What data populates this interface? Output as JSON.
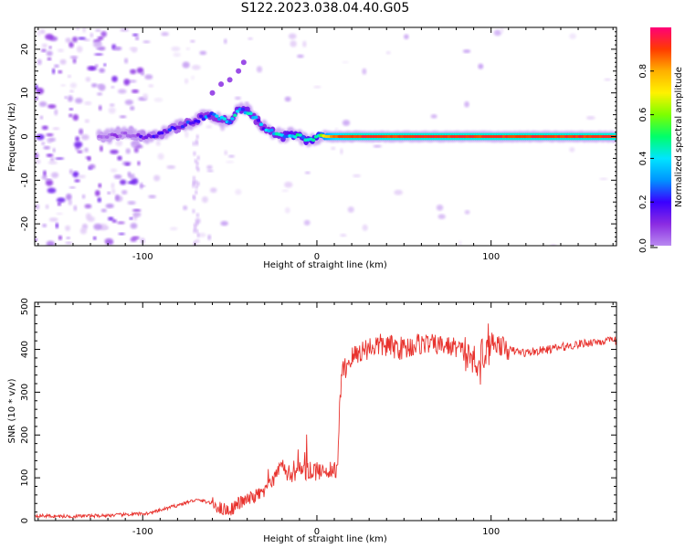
{
  "page": {
    "title": "S122.2023.038.04.40.G05"
  },
  "colors": {
    "snr_line": "#e8322d",
    "colormap": [
      "#ffffff",
      "#e2cbf7",
      "#b98af0",
      "#8a2be2",
      "#3a00ff",
      "#0094ff",
      "#00e5ff",
      "#00ff6a",
      "#7dff00",
      "#fff200",
      "#ffb000",
      "#ff3b00",
      "#ff0078"
    ]
  },
  "chart_data": [
    {
      "type": "heatmap",
      "title": "",
      "xlabel": "Height of straight line (km)",
      "ylabel": "Frequency (Hz)",
      "xlim": [
        -162,
        172
      ],
      "ylim": [
        -25,
        25
      ],
      "x_ticks": [
        -100,
        0,
        100
      ],
      "x_tick_labels": [
        "-100",
        "0",
        "100"
      ],
      "y_ticks": [
        -20,
        -10,
        0,
        10,
        20
      ],
      "y_tick_labels": [
        "-20",
        "-10",
        "0",
        "10",
        "20"
      ],
      "colorbar": {
        "label": "Normalized spectral amplitude",
        "range": [
          0,
          1
        ],
        "ticks": [
          0.0,
          0.2,
          0.4,
          0.6,
          0.8
        ],
        "tick_labels": [
          "0.0",
          "0.2",
          "0.4",
          "0.6",
          "0.8"
        ]
      },
      "ridge": {
        "x": [
          -120,
          -110,
          -100,
          -95,
          -90,
          -85,
          -80,
          -75,
          -70,
          -65,
          -60,
          -55,
          -50,
          -45,
          -42,
          -38,
          -35,
          -30,
          -25,
          -20,
          -15,
          -10,
          -5,
          0,
          5,
          10,
          20,
          40,
          60,
          80,
          100,
          120,
          140,
          160,
          170
        ],
        "freq": [
          0,
          0.5,
          0,
          0.3,
          0.5,
          1.5,
          2,
          3,
          3.5,
          4.5,
          5,
          4,
          3.5,
          6,
          6,
          5.5,
          4,
          2,
          1,
          0,
          0.5,
          0,
          -1,
          0,
          0,
          0,
          0,
          0,
          0,
          0,
          0,
          0,
          0,
          0,
          0
        ],
        "amplitude": [
          0.25,
          0.25,
          0.3,
          0.3,
          0.35,
          0.35,
          0.35,
          0.4,
          0.4,
          0.45,
          0.45,
          0.45,
          0.5,
          0.5,
          0.5,
          0.5,
          0.45,
          0.45,
          0.5,
          0.5,
          0.55,
          0.55,
          0.55,
          0.6,
          0.8,
          0.9,
          0.95,
          0.95,
          0.95,
          0.95,
          0.95,
          0.95,
          0.95,
          0.95,
          0.95
        ]
      },
      "secondary_ridge": {
        "x": [
          -60,
          -55,
          -50,
          -45,
          -42
        ],
        "freq": [
          10,
          12,
          13,
          15,
          17
        ]
      }
    },
    {
      "type": "line",
      "title": "",
      "xlabel": "Height of straight line (km)",
      "ylabel": "SNR (10 * v/v)",
      "xlim": [
        -162,
        172
      ],
      "ylim": [
        0,
        510
      ],
      "x_ticks": [
        -100,
        0,
        100
      ],
      "x_tick_labels": [
        "-100",
        "0",
        "100"
      ],
      "y_ticks": [
        0,
        100,
        200,
        300,
        400,
        500
      ],
      "y_tick_labels": [
        "0",
        "100",
        "200",
        "300",
        "400",
        "500"
      ],
      "series": [
        {
          "x": [
            -162,
            -150,
            -140,
            -130,
            -120,
            -110,
            -100,
            -95,
            -90,
            -85,
            -80,
            -75,
            -70,
            -65,
            -60,
            -55,
            -50,
            -45,
            -40,
            -35,
            -30,
            -25,
            -22,
            -20,
            -18,
            -15,
            -12,
            -10,
            -5,
            0,
            5,
            10,
            12,
            13,
            14,
            15,
            16,
            18,
            20,
            25,
            30,
            35,
            40,
            50,
            60,
            70,
            80,
            85,
            90,
            95,
            100,
            105,
            110,
            120,
            130,
            140,
            150,
            160,
            172
          ],
          "y": [
            12,
            10,
            10,
            11,
            12,
            14,
            16,
            18,
            24,
            30,
            36,
            42,
            48,
            46,
            40,
            28,
            24,
            40,
            48,
            58,
            68,
            90,
            120,
            140,
            110,
            100,
            110,
            115,
            115,
            115,
            120,
            118,
            125,
            260,
            320,
            350,
            355,
            370,
            380,
            395,
            405,
            410,
            408,
            402,
            415,
            410,
            405,
            392,
            375,
            390,
            420,
            410,
            398,
            392,
            398,
            405,
            412,
            418,
            420
          ]
        }
      ]
    }
  ]
}
